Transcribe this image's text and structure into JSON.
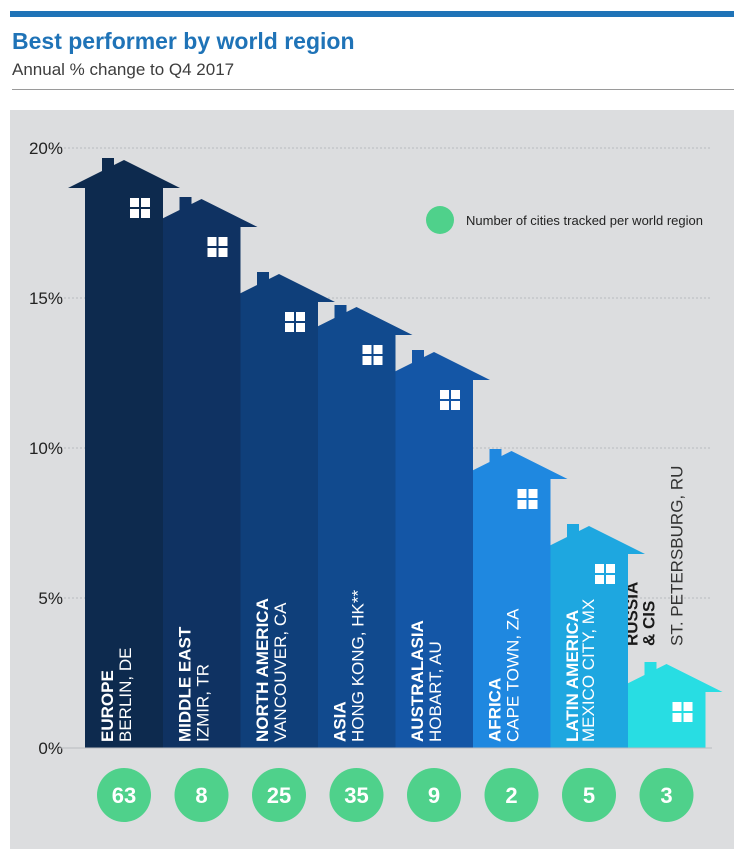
{
  "header": {
    "title": "Best performer by world region",
    "subtitle": "Annual % change to Q4 2017"
  },
  "legend": {
    "label": "Number of cities tracked per world region",
    "color": "#4fd18b"
  },
  "chart_data": {
    "type": "bar",
    "title": "Best performer by world region",
    "subtitle": "Annual % change to Q4 2017",
    "ylim": [
      0,
      20
    ],
    "yticks": [
      "0%",
      "5%",
      "10%",
      "15%",
      "20%"
    ],
    "grid": true,
    "categories": [
      "EUROPE",
      "MIDDLE EAST",
      "NORTH AMERICA",
      "ASIA",
      "AUSTRALASIA",
      "AFRICA",
      "LATIN AMERICA",
      "RUSSIA & CIS"
    ],
    "cities": [
      "BERLIN, DE",
      "IZMIR, TR",
      "VANCOUVER, CA",
      "HONG KONG, HK**",
      "HOBART, AU",
      "CAPE TOWN, ZA",
      "MEXICO CITY, MX",
      "ST. PETERSBURG, RU"
    ],
    "values": [
      19.6,
      18.3,
      15.8,
      14.7,
      13.2,
      9.9,
      7.4,
      2.8
    ],
    "cities_tracked": [
      63,
      8,
      25,
      35,
      9,
      2,
      5,
      3
    ],
    "colors": [
      "#0d2a4e",
      "#0f3262",
      "#0f3f7a",
      "#114a8e",
      "#1456a6",
      "#1f88e0",
      "#1ea7e0",
      "#28dde3"
    ]
  }
}
